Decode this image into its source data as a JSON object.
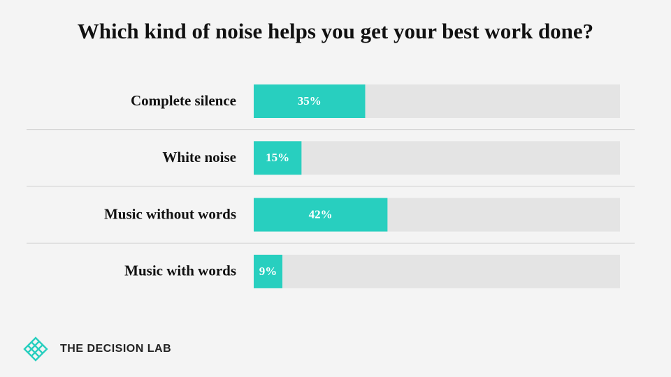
{
  "chart_data": {
    "type": "bar",
    "orientation": "horizontal",
    "title": "Which kind of noise helps you get your best work done?",
    "categories": [
      "Complete silence",
      "White noise",
      "Music without words",
      "Music with words"
    ],
    "values": [
      35,
      15,
      42,
      9
    ],
    "value_labels": [
      "35%",
      "15%",
      "42%",
      "9%"
    ],
    "color": "#28cfbf",
    "track_color": "#e4e4e4",
    "xlim": [
      0,
      115
    ]
  },
  "logo_text": "THE DECISION LAB"
}
